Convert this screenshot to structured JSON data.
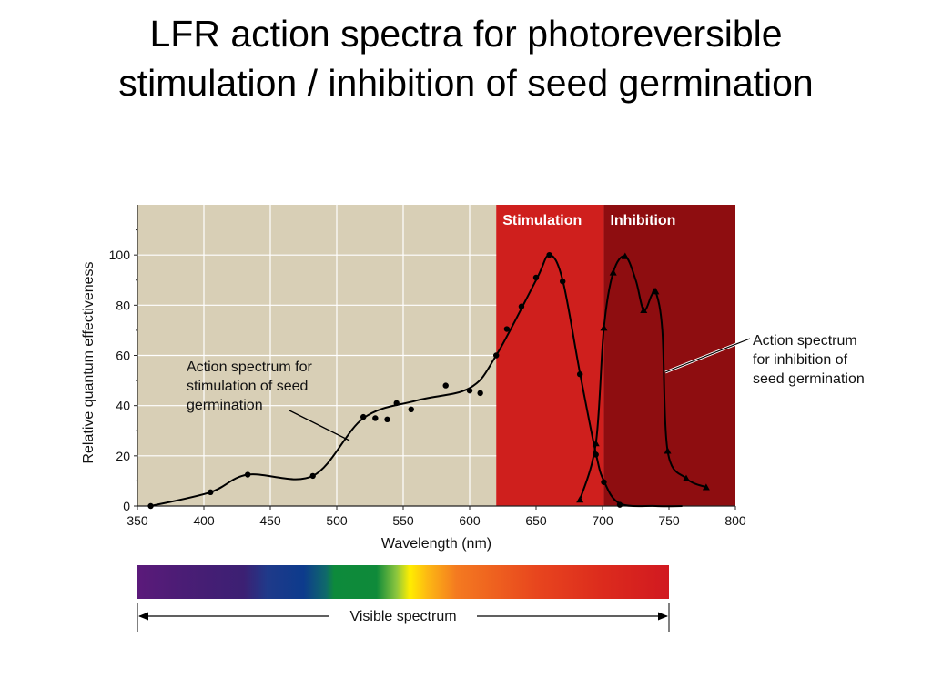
{
  "slide": {
    "title_line1": "LFR action spectra for photoreversible",
    "title_line2": "stimulation / inhibition of seed germination"
  },
  "chart_data": {
    "type": "line",
    "xlabel": "Wavelength (nm)",
    "ylabel": "Relative quantum effectiveness",
    "xlim": [
      350,
      800
    ],
    "ylim": [
      0,
      120
    ],
    "x_ticks": [
      350,
      400,
      450,
      500,
      550,
      600,
      650,
      700,
      750,
      800
    ],
    "y_ticks": [
      0,
      20,
      40,
      60,
      80,
      100
    ],
    "grid": true,
    "regions": [
      {
        "label": "",
        "from": 350,
        "to": 620,
        "color": "#d8cfb6"
      },
      {
        "label": "Stimulation",
        "from": 620,
        "to": 701,
        "color": "#cf1f1d"
      },
      {
        "label": "Inhibition",
        "from": 701,
        "to": 800,
        "color": "#8e0d10"
      }
    ],
    "series": [
      {
        "name": "Action spectrum for stimulation of seed germination",
        "marker": "circle",
        "points": [
          [
            360,
            0
          ],
          [
            405,
            5.5
          ],
          [
            433,
            12.5
          ],
          [
            482,
            12
          ],
          [
            520,
            35.5
          ],
          [
            529,
            35
          ],
          [
            538,
            34.5
          ],
          [
            545,
            41
          ],
          [
            556,
            38.5
          ],
          [
            582,
            48
          ],
          [
            600,
            46
          ],
          [
            608,
            45
          ],
          [
            620,
            60
          ],
          [
            628,
            70.5
          ],
          [
            639,
            79.5
          ],
          [
            650,
            91
          ],
          [
            660,
            100
          ],
          [
            670,
            89.5
          ],
          [
            683,
            52.5
          ],
          [
            695,
            20.5
          ],
          [
            701,
            9.5
          ],
          [
            713,
            0.5
          ]
        ],
        "curve": [
          [
            360,
            0
          ],
          [
            405,
            5.5
          ],
          [
            433,
            12.5
          ],
          [
            482,
            12
          ],
          [
            520,
            35
          ],
          [
            560,
            42
          ],
          [
            600,
            47
          ],
          [
            620,
            60
          ],
          [
            650,
            90
          ],
          [
            660,
            100
          ],
          [
            670,
            90
          ],
          [
            683,
            53
          ],
          [
            695,
            21
          ],
          [
            701,
            10
          ],
          [
            713,
            1
          ],
          [
            740,
            0
          ],
          [
            760,
            0
          ]
        ]
      },
      {
        "name": "Action spectrum for inhibition of seed germination",
        "marker": "triangle",
        "points": [
          [
            683,
            2.5
          ],
          [
            695,
            25
          ],
          [
            701,
            71
          ],
          [
            708,
            93
          ],
          [
            717,
            99.5
          ],
          [
            731,
            78
          ],
          [
            740,
            85.5
          ],
          [
            749,
            22
          ],
          [
            763,
            11
          ],
          [
            778,
            7.5
          ]
        ],
        "curve": [
          [
            683,
            2.5
          ],
          [
            695,
            25
          ],
          [
            701,
            71
          ],
          [
            708,
            93
          ],
          [
            717,
            99.5
          ],
          [
            725,
            90
          ],
          [
            731,
            78
          ],
          [
            737,
            84
          ],
          [
            740,
            85.5
          ],
          [
            745,
            70
          ],
          [
            749,
            22
          ],
          [
            763,
            11
          ],
          [
            778,
            7.5
          ]
        ]
      }
    ],
    "annotations": {
      "stimulation_lines": [
        "Action spectrum for",
        "stimulation of seed",
        "germination"
      ],
      "inhibition_lines": [
        "Action spectrum",
        "for inhibition of",
        "seed germination"
      ]
    },
    "visible_spectrum": {
      "label": "Visible spectrum",
      "from": 350,
      "to": 750,
      "stops": [
        {
          "nm": 350,
          "color": "#5b1a7a"
        },
        {
          "nm": 385,
          "color": "#4a1d75"
        },
        {
          "nm": 430,
          "color": "#3c2073"
        },
        {
          "nm": 448,
          "color": "#1f3a8a"
        },
        {
          "nm": 475,
          "color": "#0d3b8c"
        },
        {
          "nm": 492,
          "color": "#0f6a6a"
        },
        {
          "nm": 498,
          "color": "#0d8a3b"
        },
        {
          "nm": 530,
          "color": "#0f8a3a"
        },
        {
          "nm": 545,
          "color": "#8cc63e"
        },
        {
          "nm": 555,
          "color": "#ffee00"
        },
        {
          "nm": 568,
          "color": "#fdb913"
        },
        {
          "nm": 590,
          "color": "#f47a20"
        },
        {
          "nm": 650,
          "color": "#e8461e"
        },
        {
          "nm": 700,
          "color": "#dc2b1d"
        },
        {
          "nm": 750,
          "color": "#d11920"
        }
      ]
    }
  }
}
